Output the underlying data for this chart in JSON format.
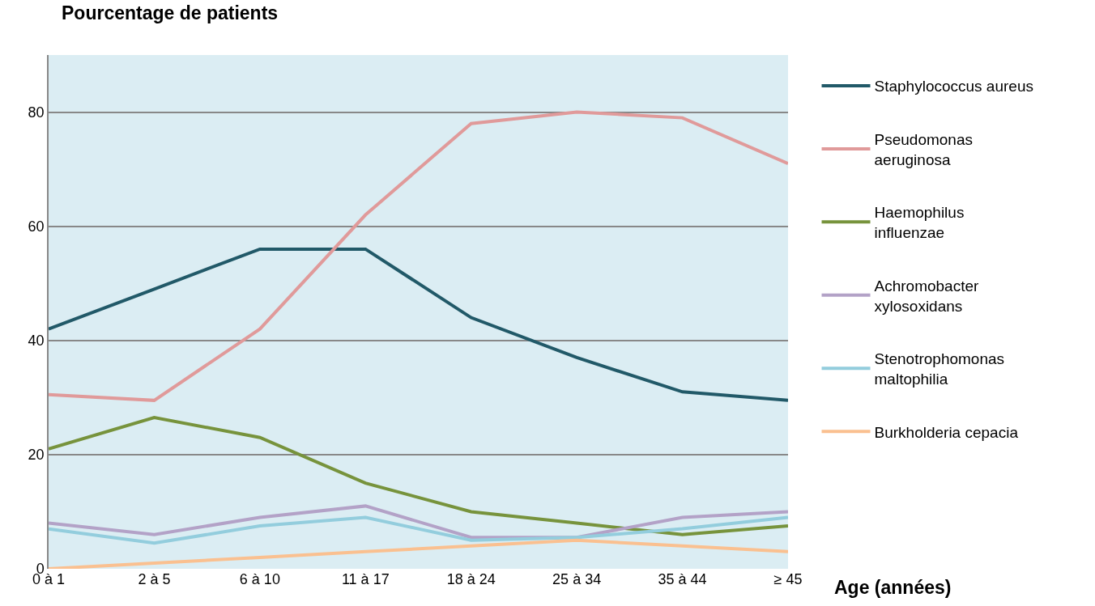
{
  "chart_data": {
    "type": "line",
    "title": "Pourcentage de patients",
    "xlabel": "Age (années)",
    "categories": [
      "0 à 1",
      "2 à 5",
      "6 à 10",
      "11 à 17",
      "18 à 24",
      "25 à 34",
      "35 à 44",
      "≥ 45"
    ],
    "series": [
      {
        "name": "Staphylococcus aureus",
        "color": "#215968",
        "values": [
          42,
          49,
          56,
          56,
          44,
          37,
          31,
          29.5
        ]
      },
      {
        "name": "Pseudomonas aeruginosa",
        "color": "#e09a9a",
        "values": [
          30.5,
          29.5,
          42,
          62,
          78,
          80,
          79,
          71
        ]
      },
      {
        "name": "Haemophilus influenzae",
        "color": "#77933c",
        "values": [
          21,
          26.5,
          23,
          15,
          10,
          8,
          6,
          7.5
        ]
      },
      {
        "name": "Achromobacter xylosoxidans",
        "color": "#b3a2c7",
        "values": [
          8,
          6,
          9,
          11,
          5.5,
          5.5,
          9,
          10
        ]
      },
      {
        "name": "Stenotrophomonas maltophilia",
        "color": "#93cddd",
        "values": [
          7,
          4.5,
          7.5,
          9,
          5,
          5.5,
          7,
          9
        ]
      },
      {
        "name": "Burkholderia cepacia",
        "color": "#fac090",
        "values": [
          0,
          1,
          2,
          3,
          4,
          5,
          4,
          3
        ]
      }
    ],
    "ylim": [
      0,
      90
    ],
    "yticks": [
      0,
      20,
      40,
      60,
      80
    ],
    "grid": "y",
    "legend": "right",
    "marker": "none",
    "line_style": "solid"
  }
}
